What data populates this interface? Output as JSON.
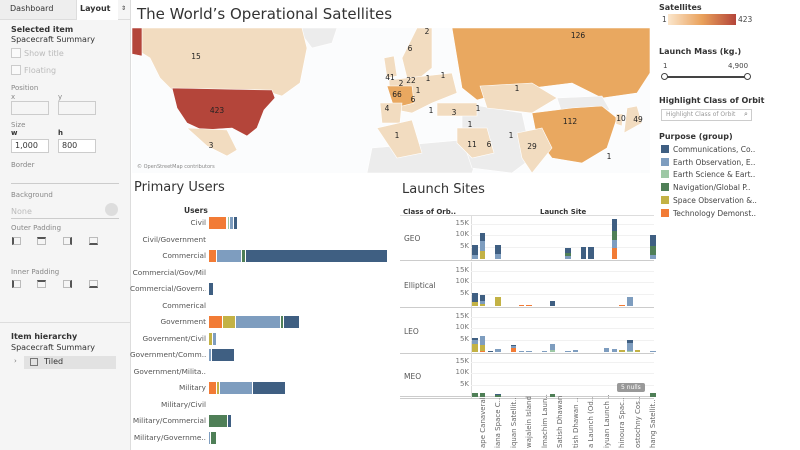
{
  "left_panel": {
    "tabs": [
      {
        "label": "Dashboard"
      },
      {
        "label": "Layout",
        "selected": true
      },
      {
        "label": "⇕"
      }
    ],
    "selected_item": {
      "heading": "Selected item",
      "name": "Spacecraft Summary"
    },
    "show_title": "Show title",
    "floating": "Floating",
    "position": {
      "label": "Position",
      "x_label": "x",
      "y_label": "y",
      "x": "",
      "y": ""
    },
    "size": {
      "label": "Size",
      "w_label": "w",
      "h_label": "h",
      "w": "1,000",
      "h": "800"
    },
    "border": "Border",
    "background": "Background",
    "background_value": "None",
    "outer_padding": "Outer Padding",
    "inner_padding": "Inner Padding",
    "hierarchy": {
      "heading": "Item hierarchy",
      "root": "Spacecraft Summary",
      "child": "Tiled"
    }
  },
  "map": {
    "title": "The World’s Operational Satellites",
    "attribution": "© OpenStreetMap contributors",
    "labels": [
      "15",
      "423",
      "3",
      "6",
      "2",
      "41",
      "2",
      "22",
      "1",
      "1",
      "66",
      "1",
      "6",
      "4",
      "1",
      "3",
      "1",
      "1",
      "1",
      "11",
      "6",
      "1",
      "29",
      "1",
      "126",
      "112",
      "10",
      "49",
      "1"
    ]
  },
  "primary_users": {
    "title": "Primary Users",
    "column_header": "Users",
    "rows": [
      {
        "label": "Civil",
        "segments": [
          90,
          5,
          10,
          20,
          0,
          20
        ]
      },
      {
        "label": "Civil/Government",
        "segments": [
          0,
          0,
          0,
          0,
          0,
          1
        ]
      },
      {
        "label": "Commercial",
        "segments": [
          40,
          0,
          0,
          125,
          20,
          700
        ]
      },
      {
        "label": "Commercial/Gov/Mil",
        "segments": [
          0,
          0,
          0,
          0,
          0,
          2
        ]
      },
      {
        "label": "Commercial/Govern..",
        "segments": [
          0,
          0,
          0,
          0,
          0,
          25
        ]
      },
      {
        "label": "Commerical",
        "segments": [
          0,
          0,
          0,
          0,
          0,
          4
        ]
      },
      {
        "label": "Government",
        "segments": [
          70,
          65,
          0,
          220,
          15,
          80
        ]
      },
      {
        "label": "Government/Civil",
        "segments": [
          0,
          20,
          0,
          20,
          0,
          0
        ]
      },
      {
        "label": "Government/Comm..",
        "segments": [
          0,
          0,
          0,
          15,
          0,
          115
        ]
      },
      {
        "label": "Government/Milita..",
        "segments": [
          0,
          0,
          0,
          0,
          0,
          5
        ]
      },
      {
        "label": "Military",
        "segments": [
          40,
          15,
          0,
          165,
          0,
          160
        ]
      },
      {
        "label": "Military/Civil",
        "segments": [
          0,
          0,
          0,
          0,
          0,
          3
        ]
      },
      {
        "label": "Military/Commercial",
        "segments": [
          0,
          0,
          0,
          0,
          95,
          20
        ]
      },
      {
        "label": "Military/Governme..",
        "segments": [
          0,
          0,
          0,
          10,
          30,
          0
        ]
      }
    ],
    "segment_order": [
      "Technology Demonstration",
      "Space Observation",
      "Earth Science",
      "Earth Observation",
      "Navigation/Global Positioning",
      "Communications"
    ]
  },
  "launch_sites": {
    "title": "Launch Sites",
    "row_header": "Class of Orb..",
    "column_header": "Launch Site",
    "y_ticks": [
      "15K",
      "10K",
      "5K"
    ],
    "y_max": 17,
    "nulls_badge": "5 nulls",
    "site_labels": [
      "ape Canaveral",
      "iana Space C..",
      "iquan Satellit..",
      "wajalein Island",
      "lmachim Laun..",
      "Satish Dhawan",
      "tish Dhawan ..",
      "a Launch (Od..",
      "iyuan Launch ..",
      "hinoura Spac..",
      "ostochny Cos..",
      "hang Satellit.."
    ],
    "panels": [
      {
        "orbit": "GEO",
        "bars": [
          [
            0,
            [
              0,
              0,
              0,
              1.5,
              0,
              4.5
            ]
          ],
          [
            1,
            [
              0,
              3.5,
              0,
              4,
              0,
              3.5
            ]
          ],
          [
            3,
            [
              0,
              0,
              0,
              2,
              0,
              4
            ]
          ],
          [
            12,
            [
              0,
              0,
              0,
              1.3,
              1.2,
              2
            ]
          ],
          [
            14,
            [
              0,
              0,
              0,
              0,
              0,
              5
            ]
          ],
          [
            15,
            [
              0,
              0,
              0,
              0,
              0,
              5
            ]
          ],
          [
            18,
            [
              4.5,
              0,
              0,
              3.5,
              4,
              5
            ]
          ],
          [
            23,
            [
              0,
              0,
              0,
              1.5,
              4,
              4.5
            ]
          ]
        ]
      },
      {
        "orbit": "Elliptical",
        "bars": [
          [
            0,
            [
              0,
              1.5,
              0,
              0,
              0,
              4
            ]
          ],
          [
            1,
            [
              0,
              1,
              0,
              1,
              0,
              2.5
            ]
          ],
          [
            3,
            [
              0,
              4,
              0,
              0,
              0,
              0
            ]
          ],
          [
            6,
            [
              0.5,
              0,
              0,
              0,
              0,
              0
            ]
          ],
          [
            7,
            [
              0.5,
              0,
              0,
              0,
              0,
              0
            ]
          ],
          [
            10,
            [
              0,
              0,
              0,
              0,
              0,
              2.3
            ]
          ],
          [
            19,
            [
              0.3,
              0,
              0,
              0,
              0,
              0
            ]
          ],
          [
            20,
            [
              0,
              0,
              0,
              4,
              0,
              0
            ]
          ]
        ]
      },
      {
        "orbit": "LEO",
        "bars": [
          [
            0,
            [
              0,
              3.5,
              0,
              1.5,
              0,
              1
            ]
          ],
          [
            1,
            [
              0.5,
              2.5,
              0,
              4,
              0,
              0
            ]
          ],
          [
            2,
            [
              0,
              0,
              0,
              0,
              0,
              0.5
            ]
          ],
          [
            3,
            [
              0,
              0,
              0,
              1.3,
              0,
              0
            ]
          ],
          [
            5,
            [
              1.5,
              0,
              0,
              1,
              0,
              0.5
            ]
          ],
          [
            6,
            [
              0,
              0,
              0,
              0.2,
              0,
              0
            ]
          ],
          [
            7,
            [
              0,
              0,
              0,
              0.2,
              0,
              0
            ]
          ],
          [
            9,
            [
              0,
              0,
              0,
              0.2,
              0,
              0
            ]
          ],
          [
            10,
            [
              0,
              0,
              1,
              2.5,
              0,
              0
            ]
          ],
          [
            12,
            [
              0,
              0,
              0,
              0.5,
              0,
              0
            ]
          ],
          [
            13,
            [
              0,
              0,
              0,
              0.8,
              0,
              0
            ]
          ],
          [
            17,
            [
              0,
              0,
              0,
              1.5,
              0,
              0
            ]
          ],
          [
            18,
            [
              0,
              0,
              0,
              1.3,
              0,
              0
            ]
          ],
          [
            19,
            [
              0,
              1,
              0,
              0,
              0,
              0
            ]
          ],
          [
            20,
            [
              0,
              0,
              0.5,
              3.5,
              0,
              1
            ]
          ],
          [
            21,
            [
              0,
              0.8,
              0,
              0,
              0,
              0
            ]
          ],
          [
            23,
            [
              0,
              0,
              0,
              0.2,
              0,
              0
            ]
          ]
        ]
      },
      {
        "orbit": "MEO",
        "bars": [
          [
            0,
            [
              0,
              0,
              0,
              0,
              1.5,
              0
            ]
          ],
          [
            1,
            [
              0,
              0,
              0,
              0,
              1.8,
              0
            ]
          ],
          [
            3,
            [
              0,
              0,
              0,
              0,
              0.8,
              0.5
            ]
          ],
          [
            10,
            [
              0,
              0,
              0,
              0,
              1.2,
              0
            ]
          ],
          [
            23,
            [
              0,
              0,
              0,
              0,
              1.8,
              0
            ]
          ]
        ]
      }
    ]
  },
  "legends": {
    "satellites": {
      "title": "Satellites",
      "min": "1",
      "max": "423",
      "colors": [
        "#fbe6cc",
        "#e9a15b",
        "#b4453a"
      ]
    },
    "launch_mass": {
      "title": "Launch Mass (kg.)",
      "min": "1",
      "max": "4,900",
      "range": [
        1,
        4900
      ]
    },
    "highlight": {
      "title": "Highlight Class of Orbit",
      "placeholder": "Highlight Class of Orbit"
    },
    "purpose": {
      "title": "Purpose (group)",
      "items": [
        {
          "label": "Communications, Co..",
          "color": "#3f5f82"
        },
        {
          "label": "Earth Observation, E..",
          "color": "#7e9dbf"
        },
        {
          "label": "Earth Science & Eart..",
          "color": "#9dc8a5"
        },
        {
          "label": "Navigation/Global P..",
          "color": "#4f7f57"
        },
        {
          "label": "Space Observation &..",
          "color": "#c3b245"
        },
        {
          "label": "Technology Demonst..",
          "color": "#f27b35"
        }
      ]
    }
  }
}
